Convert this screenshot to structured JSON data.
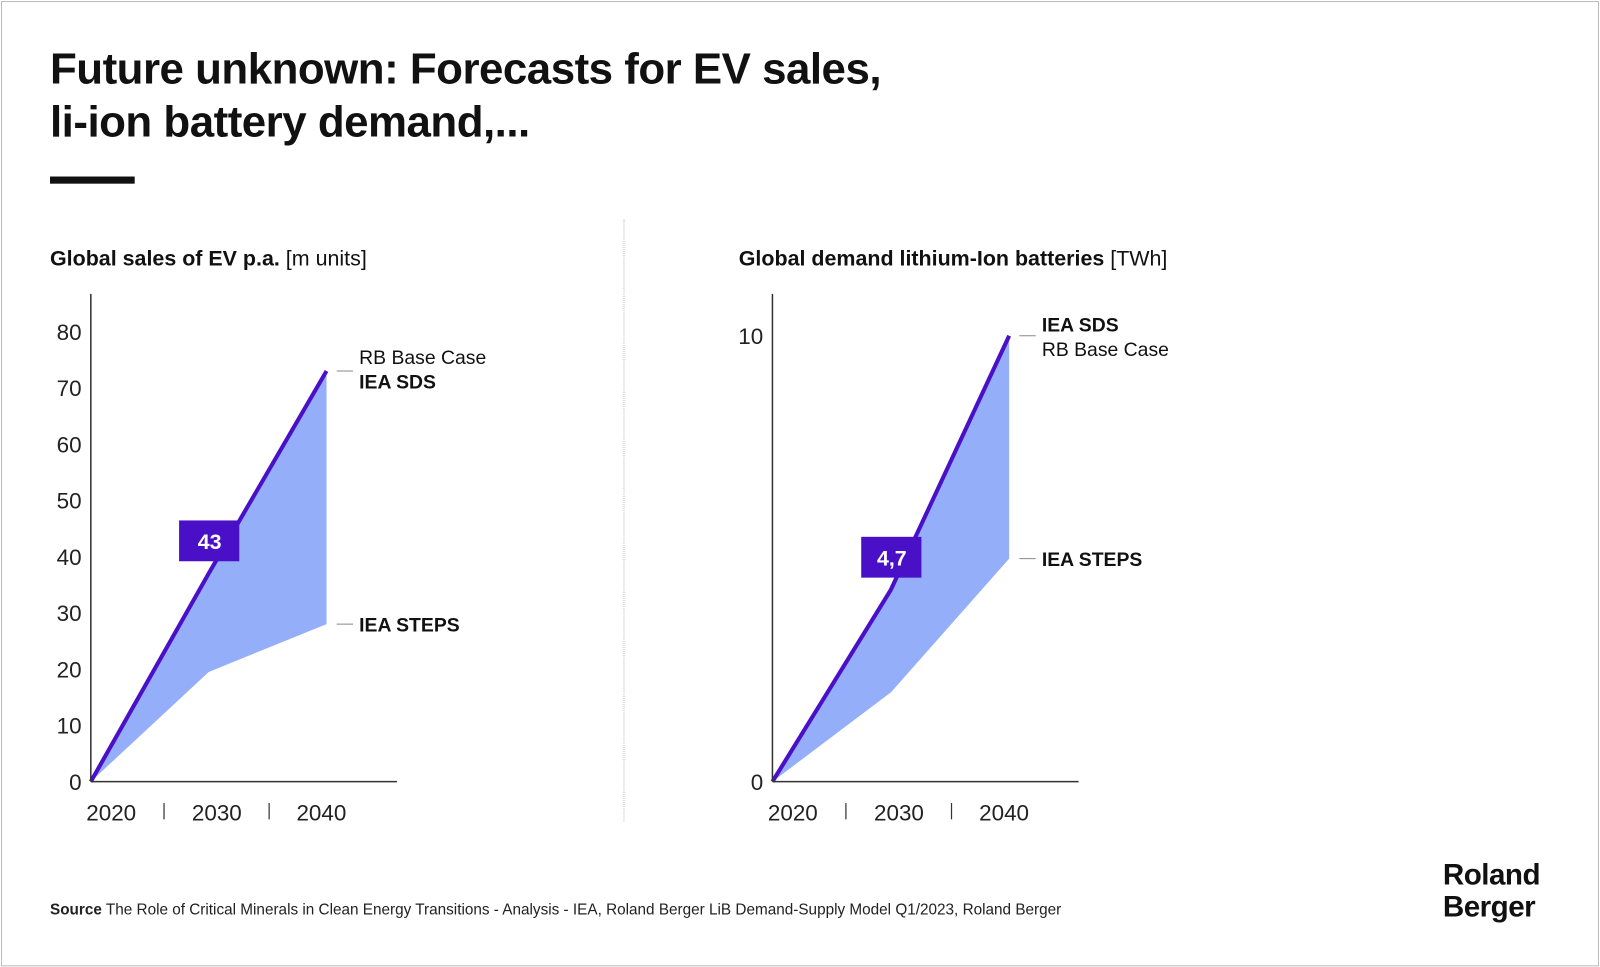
{
  "header": {
    "title_line1": "Future unknown: Forecasts for EV sales,",
    "title_line2": "li-ion battery demand,..."
  },
  "chart_data": [
    {
      "type": "area",
      "title": "Global sales of EV p.a.",
      "unit": "[m units]",
      "x": [
        2020,
        2030,
        2040
      ],
      "x_tick_labels": [
        "2020",
        "2030",
        "2040"
      ],
      "y_ticks": [
        0,
        10,
        20,
        30,
        40,
        50,
        60,
        70,
        80
      ],
      "ylim": [
        0,
        87
      ],
      "series": [
        {
          "name": "RB Base Case / IEA SDS",
          "values": [
            0,
            37,
            73
          ]
        },
        {
          "name": "IEA STEPS",
          "values": [
            0,
            19.5,
            28
          ]
        }
      ],
      "annotation": {
        "label": "43",
        "x": 2030
      },
      "labels": {
        "upper_a": "RB Base Case",
        "upper_b": "IEA SDS",
        "lower": "IEA STEPS"
      },
      "upper_bold_first": false
    },
    {
      "type": "area",
      "title": "Global demand lithium-Ion batteries",
      "unit": "[TWh]",
      "x": [
        2020,
        2030,
        2040
      ],
      "x_tick_labels": [
        "2020",
        "2030",
        "2040"
      ],
      "y_ticks": [
        0,
        10
      ],
      "ylim": [
        0,
        11
      ],
      "series": [
        {
          "name": "IEA SDS / RB Base Case",
          "values": [
            0,
            4.3,
            10
          ]
        },
        {
          "name": "IEA STEPS",
          "values": [
            0,
            2.0,
            5.0
          ]
        }
      ],
      "annotation": {
        "label": "4,7",
        "x": 2030
      },
      "labels": {
        "upper_a": "IEA SDS",
        "upper_b": "RB Base Case",
        "lower": "IEA STEPS"
      },
      "upper_bold_first": true
    }
  ],
  "colors": {
    "line": "#4a10c8",
    "band": "#94aefa",
    "label_box": "#4a10c8"
  },
  "footer": {
    "source_label": "Source",
    "source_text": "The Role of Critical Minerals in Clean Energy Transitions - Analysis - IEA, Roland Berger LiB Demand-Supply Model Q1/2023, Roland Berger",
    "logo_line1": "Roland",
    "logo_line2": "Berger"
  }
}
